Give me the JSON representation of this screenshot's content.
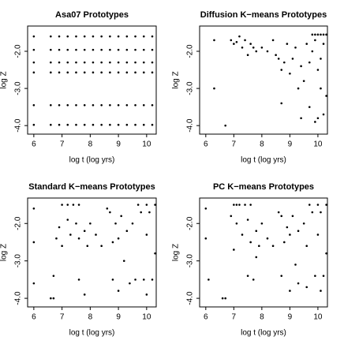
{
  "chart_data": [
    {
      "type": "scatter",
      "title": "Asa07 Prototypes",
      "xlabel": "log t (log yrs)",
      "ylabel": "log Z",
      "color": "#000000",
      "xlim": [
        5.78,
        10.34
      ],
      "ylim": [
        -4.23,
        -1.32
      ],
      "xticks": [
        6,
        7,
        8,
        9,
        10
      ],
      "yticks": [
        {
          "value": -2,
          "label": "-2.0"
        },
        {
          "value": -3,
          "label": "-3.0"
        },
        {
          "value": -4,
          "label": "-4.0"
        }
      ],
      "x": [
        6.0,
        6.6,
        6.9,
        7.2,
        7.5,
        7.8,
        8.1,
        8.4,
        8.7,
        9.0,
        9.3,
        9.6,
        9.9,
        10.2,
        6.0,
        6.6,
        6.9,
        7.2,
        7.5,
        7.8,
        8.1,
        8.4,
        8.7,
        9.0,
        9.3,
        9.6,
        9.9,
        10.2,
        6.0,
        6.6,
        6.9,
        7.2,
        7.5,
        7.8,
        8.1,
        8.4,
        8.7,
        9.0,
        9.3,
        9.6,
        9.9,
        10.2,
        6.0,
        6.6,
        6.9,
        7.2,
        7.5,
        7.8,
        8.1,
        8.4,
        8.7,
        9.0,
        9.3,
        9.6,
        9.9,
        10.2,
        6.0,
        6.6,
        6.9,
        7.2,
        7.5,
        7.8,
        8.1,
        8.4,
        8.7,
        9.0,
        9.3,
        9.6,
        9.9,
        10.2,
        6.0,
        6.6,
        6.9,
        7.2,
        7.5,
        7.8,
        8.1,
        8.4,
        8.7,
        9.0,
        9.3,
        9.6,
        9.9,
        10.2
      ],
      "y": [
        -1.6,
        -1.6,
        -1.6,
        -1.6,
        -1.6,
        -1.6,
        -1.6,
        -1.6,
        -1.6,
        -1.6,
        -1.6,
        -1.6,
        -1.6,
        -1.6,
        -1.96,
        -1.96,
        -1.96,
        -1.96,
        -1.96,
        -1.96,
        -1.96,
        -1.96,
        -1.96,
        -1.96,
        -1.96,
        -1.96,
        -1.96,
        -1.96,
        -2.3,
        -2.3,
        -2.3,
        -2.3,
        -2.3,
        -2.3,
        -2.3,
        -2.3,
        -2.3,
        -2.3,
        -2.3,
        -2.3,
        -2.3,
        -2.3,
        -2.57,
        -2.57,
        -2.57,
        -2.57,
        -2.57,
        -2.57,
        -2.57,
        -2.57,
        -2.57,
        -2.57,
        -2.57,
        -2.57,
        -2.57,
        -2.57,
        -3.45,
        -3.45,
        -3.45,
        -3.45,
        -3.45,
        -3.45,
        -3.45,
        -3.45,
        -3.45,
        -3.45,
        -3.45,
        -3.45,
        -3.45,
        -3.45,
        -3.98,
        -3.98,
        -3.98,
        -3.98,
        -3.98,
        -3.98,
        -3.98,
        -3.98,
        -3.98,
        -3.98,
        -3.98,
        -3.98,
        -3.98,
        -3.98
      ]
    },
    {
      "type": "scatter",
      "title": "Diffusion K−means Prototypes",
      "xlabel": "log t (log yrs)",
      "ylabel": "log Z",
      "color": "#000000",
      "xlim": [
        5.78,
        10.34
      ],
      "ylim": [
        -4.23,
        -1.32
      ],
      "xticks": [
        6,
        7,
        8,
        9,
        10
      ],
      "yticks": [
        {
          "value": -2,
          "label": "-2.0"
        },
        {
          "value": -3,
          "label": "-3.0"
        },
        {
          "value": -4,
          "label": "-4.0"
        }
      ],
      "x": [
        6.3,
        6.3,
        6.7,
        6.9,
        7.0,
        7.1,
        7.2,
        7.3,
        7.4,
        7.5,
        7.6,
        7.7,
        7.8,
        8.0,
        8.2,
        8.4,
        8.5,
        8.6,
        8.7,
        8.8,
        8.9,
        9.0,
        9.1,
        9.2,
        9.3,
        9.4,
        9.5,
        9.6,
        9.7,
        9.8,
        9.9,
        10.0,
        10.1,
        10.2,
        10.3,
        9.8,
        9.9,
        10.0,
        10.1,
        10.2,
        10.3,
        10.0,
        10.2,
        9.9,
        8.7,
        9.4,
        10.1,
        9.7
      ],
      "y": [
        -1.7,
        -3.0,
        -4.0,
        -1.7,
        -1.8,
        -1.75,
        -1.6,
        -1.9,
        -1.7,
        -2.1,
        -1.8,
        -1.9,
        -2.0,
        -1.9,
        -2.0,
        -1.7,
        -2.1,
        -2.2,
        -2.5,
        -2.3,
        -1.8,
        -2.6,
        -2.2,
        -1.9,
        -3.0,
        -2.4,
        -2.8,
        -1.8,
        -3.5,
        -2.0,
        -1.7,
        -2.5,
        -3.0,
        -1.8,
        -3.2,
        -1.55,
        -1.55,
        -1.55,
        -1.55,
        -1.55,
        -1.55,
        -3.8,
        -3.7,
        -3.9,
        -3.4,
        -3.8,
        -2.2,
        -2.3
      ]
    },
    {
      "type": "scatter",
      "title": "Standard K−means Prototypes",
      "xlabel": "log t (log yrs)",
      "ylabel": "log Z",
      "color": "#000000",
      "xlim": [
        5.78,
        10.34
      ],
      "ylim": [
        -4.23,
        -1.32
      ],
      "xticks": [
        6,
        7,
        8,
        9,
        10
      ],
      "yticks": [
        {
          "value": -2,
          "label": "-2.0"
        },
        {
          "value": -3,
          "label": "-3.0"
        },
        {
          "value": -4,
          "label": "-4.0"
        }
      ],
      "x": [
        6.0,
        6.0,
        6.0,
        6.6,
        6.7,
        6.7,
        6.8,
        6.9,
        7.0,
        7.2,
        7.4,
        7.6,
        7.0,
        7.2,
        7.3,
        7.5,
        7.6,
        7.8,
        7.9,
        7.6,
        7.8,
        8.0,
        8.2,
        8.4,
        8.6,
        8.7,
        8.8,
        8.9,
        9.0,
        9.1,
        9.2,
        9.3,
        8.8,
        9.0,
        9.4,
        9.6,
        9.7,
        9.8,
        10.0,
        10.1,
        10.2,
        10.3,
        9.9,
        10.0,
        9.5,
        10.0,
        10.3
      ],
      "y": [
        -1.6,
        -2.5,
        -3.6,
        -4.0,
        -4.0,
        -3.4,
        -2.4,
        -2.1,
        -1.5,
        -1.5,
        -1.5,
        -1.5,
        -2.6,
        -1.9,
        -2.3,
        -2.0,
        -2.4,
        -2.2,
        -2.6,
        -3.5,
        -3.9,
        -2.0,
        -2.3,
        -2.6,
        -1.6,
        -1.7,
        -2.5,
        -2.0,
        -2.4,
        -1.8,
        -3.0,
        -2.2,
        -3.5,
        -3.8,
        -3.6,
        -3.5,
        -1.5,
        -1.7,
        -1.5,
        -1.7,
        -3.5,
        -1.5,
        -3.5,
        -3.9,
        -2.0,
        -2.3,
        -2.8
      ]
    },
    {
      "type": "scatter",
      "title": "PC K−means Prototypes",
      "xlabel": "log t (log yrs)",
      "ylabel": "log Z",
      "color": "#000000",
      "xlim": [
        5.78,
        10.34
      ],
      "ylim": [
        -4.23,
        -1.32
      ],
      "xticks": [
        6,
        7,
        8,
        9,
        10
      ],
      "yticks": [
        {
          "value": -2,
          "label": "-2.0"
        },
        {
          "value": -3,
          "label": "-3.0"
        },
        {
          "value": -4,
          "label": "-4.0"
        }
      ],
      "x": [
        6.0,
        6.0,
        6.1,
        6.6,
        6.7,
        6.9,
        7.0,
        7.1,
        7.2,
        7.4,
        7.6,
        7.0,
        7.1,
        7.3,
        7.5,
        7.6,
        7.8,
        7.9,
        7.5,
        7.7,
        7.8,
        8.0,
        8.2,
        8.4,
        8.6,
        8.7,
        8.8,
        8.9,
        9.0,
        9.1,
        9.2,
        9.3,
        8.7,
        9.0,
        9.3,
        9.6,
        9.7,
        9.8,
        10.0,
        10.1,
        10.2,
        10.3,
        9.9,
        10.1,
        9.5,
        10.0,
        10.3,
        9.6
      ],
      "y": [
        -1.6,
        -2.4,
        -3.5,
        -4.0,
        -4.0,
        -1.8,
        -1.5,
        -1.5,
        -1.5,
        -1.5,
        -1.5,
        -2.7,
        -2.0,
        -2.3,
        -1.9,
        -2.5,
        -2.2,
        -2.6,
        -3.4,
        -3.5,
        -2.9,
        -2.0,
        -2.4,
        -2.6,
        -1.7,
        -1.8,
        -2.5,
        -2.1,
        -2.3,
        -1.8,
        -3.1,
        -2.2,
        -3.4,
        -3.8,
        -3.6,
        -3.7,
        -1.5,
        -1.7,
        -1.5,
        -1.7,
        -3.4,
        -1.5,
        -3.4,
        -3.8,
        -2.0,
        -2.3,
        -2.8,
        -2.6
      ]
    }
  ]
}
